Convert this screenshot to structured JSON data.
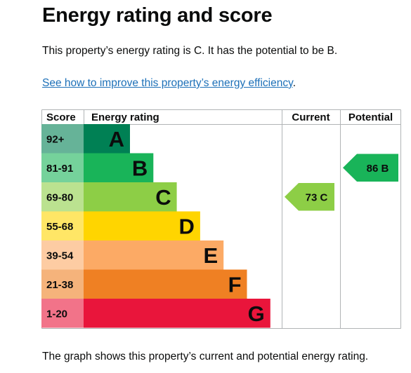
{
  "page": {
    "title": "Energy rating and score",
    "summary": "This property’s energy rating is C. It has the potential to be B.",
    "link_text": "See how to improve this property’s energy efficiency",
    "link_suffix": ".",
    "footer": "The graph shows this property’s current and potential energy rating."
  },
  "chart_data": {
    "type": "table",
    "headers": {
      "score": "Score",
      "energy_rating": "Energy rating",
      "current": "Current",
      "potential": "Potential"
    },
    "bands": [
      {
        "score": "92+",
        "letter": "A",
        "color": "#008054",
        "score_bg": "#66b398",
        "rank": 1
      },
      {
        "score": "81-91",
        "letter": "B",
        "color": "#19b459",
        "score_bg": "#75d29b",
        "rank": 2
      },
      {
        "score": "69-80",
        "letter": "C",
        "color": "#8dce46",
        "score_bg": "#bbe290",
        "rank": 3
      },
      {
        "score": "55-68",
        "letter": "D",
        "color": "#ffd500",
        "score_bg": "#ffe666",
        "rank": 4
      },
      {
        "score": "39-54",
        "letter": "E",
        "color": "#fcaa65",
        "score_bg": "#fdcca3",
        "rank": 5
      },
      {
        "score": "21-38",
        "letter": "F",
        "color": "#ef8023",
        "score_bg": "#f5b37b",
        "rank": 6
      },
      {
        "score": "1-20",
        "letter": "G",
        "color": "#e9153b",
        "score_bg": "#f27389",
        "rank": 7
      }
    ],
    "current": {
      "score": 73,
      "letter": "C",
      "label": "73 C",
      "color": "#8dce46"
    },
    "potential": {
      "score": 86,
      "letter": "B",
      "label": "86 B",
      "color": "#19b459"
    }
  }
}
